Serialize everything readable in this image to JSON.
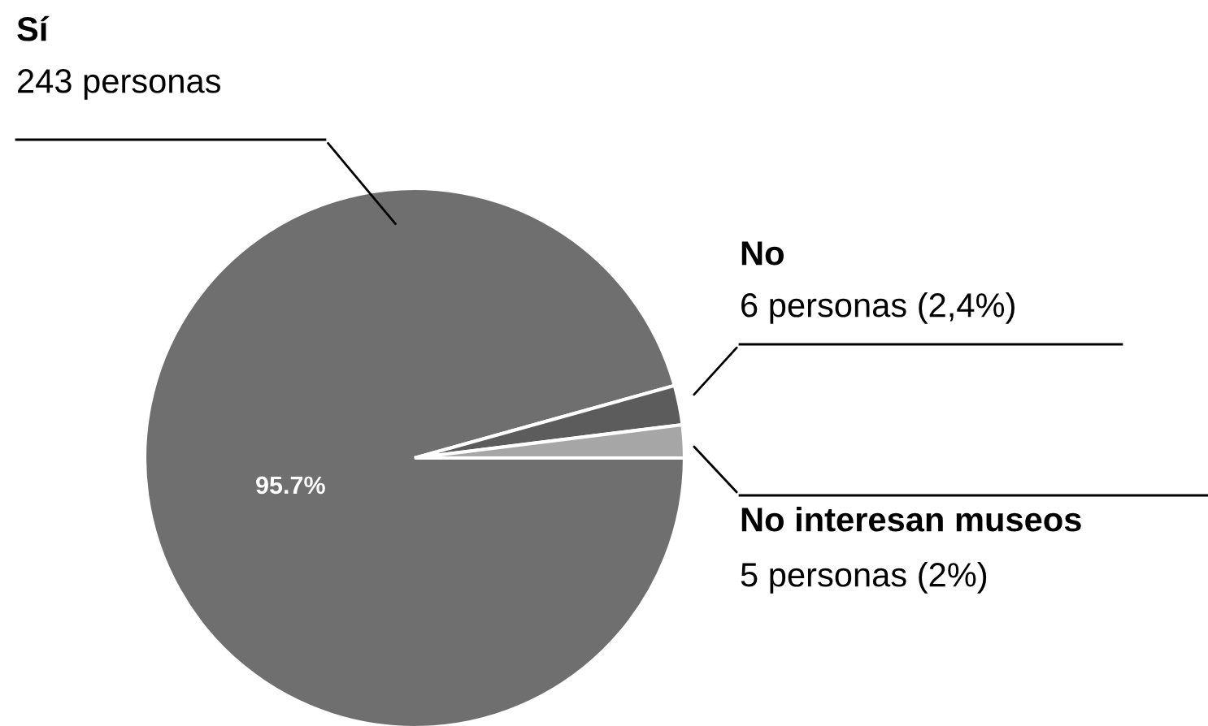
{
  "chart_data": {
    "type": "pie",
    "categories": [
      "Sí",
      "No",
      "No interesan museos"
    ],
    "values": [
      243,
      6,
      5
    ],
    "colors": [
      "#6f6f6f",
      "#5c5c5c",
      "#a6a6a6"
    ],
    "value_labels": [
      "243 personas",
      "6 personas (2,4%)",
      "5 personas (2%)"
    ],
    "annotations": [
      "95.7%"
    ],
    "legend": false
  }
}
